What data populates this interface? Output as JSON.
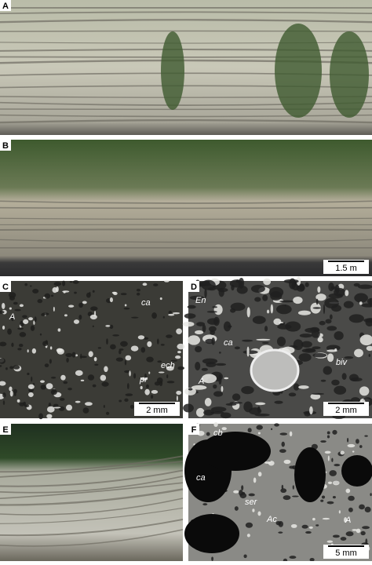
{
  "panels": [
    {
      "label": "A",
      "scale_bar": null,
      "annotations": []
    },
    {
      "label": "B",
      "scale_bar": "1.5 m",
      "annotations": []
    },
    {
      "label": "C",
      "scale_bar": "2 mm",
      "annotations": [
        "ca",
        "A",
        "ech",
        "pr"
      ]
    },
    {
      "label": "D",
      "scale_bar": "2 mm",
      "annotations": [
        "En",
        "ca",
        "biv",
        "A"
      ]
    },
    {
      "label": "E",
      "scale_bar": null,
      "annotations": []
    },
    {
      "label": "F",
      "scale_bar": "5 mm",
      "annotations": [
        "cb",
        "ca",
        "ser",
        "Ac",
        "A"
      ]
    }
  ]
}
